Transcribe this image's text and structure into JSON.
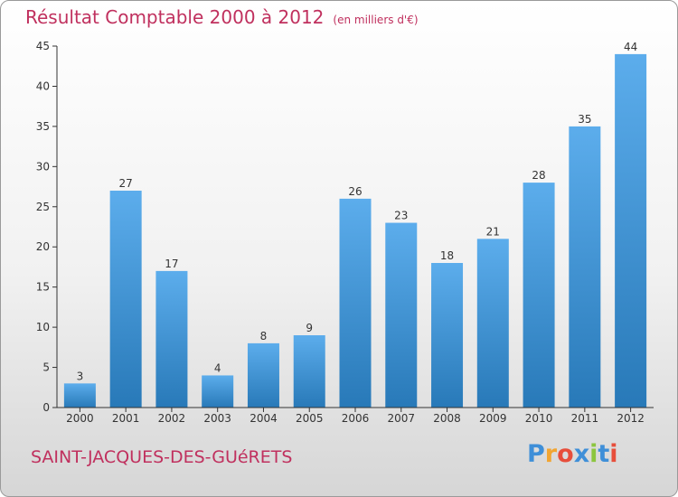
{
  "title": "Résultat Comptable 2000 à 2012",
  "subtitle": "(en milliers d'€)",
  "commune": "SAINT-JACQUES-DES-GUéRETS",
  "logo": {
    "letters": [
      "P",
      "r",
      "o",
      "x",
      "i",
      "t",
      "i"
    ],
    "colors": [
      "#3f8fd8",
      "#f2a531",
      "#e74e3b",
      "#3f8fd8",
      "#8cc63f",
      "#3f8fd8",
      "#e74e3b"
    ]
  },
  "colors": {
    "bar_light": "#5cadec",
    "bar_dark": "#2879b8",
    "text": "#c0305e"
  },
  "chart_data": {
    "type": "bar",
    "categories": [
      "2000",
      "2001",
      "2002",
      "2003",
      "2004",
      "2005",
      "2006",
      "2007",
      "2008",
      "2009",
      "2010",
      "2011",
      "2012"
    ],
    "values": [
      3,
      27,
      17,
      4,
      8,
      9,
      26,
      23,
      18,
      21,
      28,
      35,
      44
    ],
    "data_labels": [
      "3",
      "27",
      "17",
      "4",
      "8",
      "9",
      "26",
      "23",
      "18",
      "21",
      "28",
      "35",
      "44"
    ],
    "yticks": [
      "0",
      "5",
      "10",
      "15",
      "20",
      "25",
      "30",
      "35",
      "40",
      "45"
    ],
    "ylim": [
      0,
      45
    ],
    "title": "Résultat Comptable 2000 à 2012",
    "xlabel": "",
    "ylabel": "",
    "grid": false
  }
}
